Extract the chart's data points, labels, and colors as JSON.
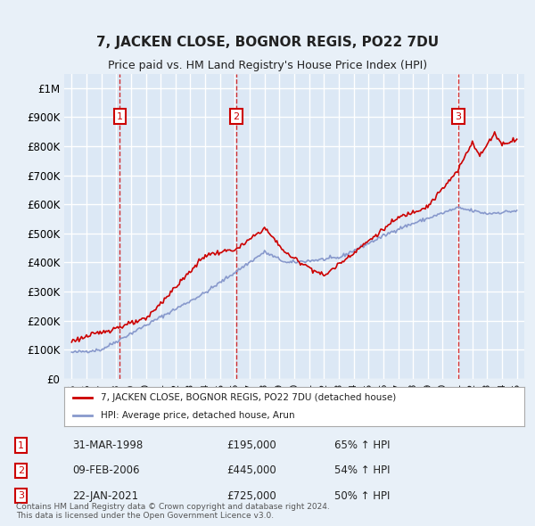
{
  "title": "7, JACKEN CLOSE, BOGNOR REGIS, PO22 7DU",
  "subtitle": "Price paid vs. HM Land Registry's House Price Index (HPI)",
  "xlabel": "",
  "ylabel": "",
  "background_color": "#e8f0f8",
  "plot_bg_color": "#dce8f5",
  "grid_color": "#ffffff",
  "sale_color": "#cc0000",
  "hpi_color": "#8899cc",
  "vline_color": "#cc0000",
  "sales": [
    {
      "date_num": 1998.25,
      "price": 195000,
      "label": "1"
    },
    {
      "date_num": 2006.1,
      "price": 445000,
      "label": "2"
    },
    {
      "date_num": 2021.05,
      "price": 725000,
      "label": "3"
    }
  ],
  "legend_entries": [
    "7, JACKEN CLOSE, BOGNOR REGIS, PO22 7DU (detached house)",
    "HPI: Average price, detached house, Arun"
  ],
  "table_rows": [
    {
      "num": "1",
      "date": "31-MAR-1998",
      "price": "£195,000",
      "hpi": "65% ↑ HPI"
    },
    {
      "num": "2",
      "date": "09-FEB-2006",
      "price": "£445,000",
      "hpi": "54% ↑ HPI"
    },
    {
      "num": "3",
      "date": "22-JAN-2021",
      "price": "£725,000",
      "hpi": "50% ↑ HPI"
    }
  ],
  "footer": "Contains HM Land Registry data © Crown copyright and database right 2024.\nThis data is licensed under the Open Government Licence v3.0.",
  "ylim": [
    0,
    1050000
  ],
  "xlim": [
    1994.5,
    2025.5
  ],
  "yticks": [
    0,
    100000,
    200000,
    300000,
    400000,
    500000,
    600000,
    700000,
    800000,
    900000,
    1000000
  ],
  "ytick_labels": [
    "£0",
    "£100K",
    "£200K",
    "£300K",
    "£400K",
    "£500K",
    "£600K",
    "£700K",
    "£800K",
    "£900K",
    "£1M"
  ],
  "xticks": [
    1995,
    1996,
    1997,
    1998,
    1999,
    2000,
    2001,
    2002,
    2003,
    2004,
    2005,
    2006,
    2007,
    2008,
    2009,
    2010,
    2011,
    2012,
    2013,
    2014,
    2015,
    2016,
    2017,
    2018,
    2019,
    2020,
    2021,
    2022,
    2023,
    2024,
    2025
  ]
}
